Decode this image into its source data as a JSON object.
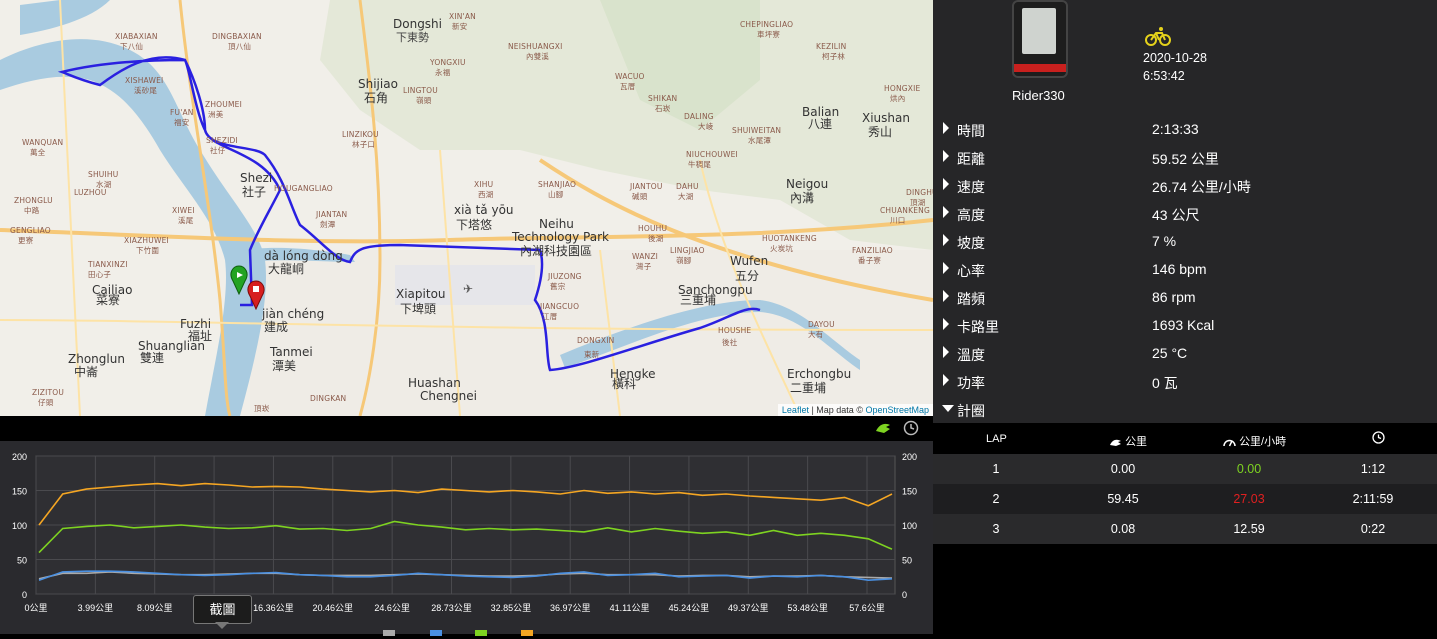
{
  "map": {
    "attribution_leaflet": "Leaflet",
    "attribution_rest": " | Map data © ",
    "attribution_osm": "OpenStreetMap",
    "labels": [
      {
        "t": "Dongshi",
        "c": "big"
      },
      {
        "t": "下東勢",
        "c": ""
      },
      {
        "t": "XIN'AN",
        "c": "small"
      },
      {
        "t": "新安",
        "c": "small"
      },
      {
        "t": "Shijiao",
        "c": "big"
      },
      {
        "t": "石角",
        "c": "big"
      },
      {
        "t": "LINGTOU",
        "c": "small"
      },
      {
        "t": "嶺頭",
        "c": "small"
      },
      {
        "t": "YONGXIU",
        "c": "small"
      },
      {
        "t": "永福",
        "c": "small"
      },
      {
        "t": "NEISHUANGXI",
        "c": "small"
      },
      {
        "t": "內雙溪",
        "c": "small"
      },
      {
        "t": "CHEPINGLIAO",
        "c": "small"
      },
      {
        "t": "車坪寮",
        "c": "small"
      },
      {
        "t": "KEZILIN",
        "c": "small"
      },
      {
        "t": "柯子林",
        "c": "small"
      },
      {
        "t": "WACUO",
        "c": "small"
      },
      {
        "t": "瓦厝",
        "c": "small"
      },
      {
        "t": "SHIKAN",
        "c": "small"
      },
      {
        "t": "石崁",
        "c": "small"
      },
      {
        "t": "DALING",
        "c": "small"
      },
      {
        "t": "大崚",
        "c": "small"
      },
      {
        "t": "Balian",
        "c": "big"
      },
      {
        "t": "八連",
        "c": "big"
      },
      {
        "t": "Xiushan",
        "c": "big"
      },
      {
        "t": "秀山",
        "c": "big"
      },
      {
        "t": "HONGXIE",
        "c": "small"
      },
      {
        "t": "烘內",
        "c": "small"
      },
      {
        "t": "SHUIWEITAN",
        "c": "small"
      },
      {
        "t": "水尾潭",
        "c": "small"
      },
      {
        "t": "NIUCHOUWEI",
        "c": "small"
      },
      {
        "t": "牛稠尾",
        "c": "small"
      },
      {
        "t": "XIABAXIAN",
        "c": "small"
      },
      {
        "t": "下八仙",
        "c": "small"
      },
      {
        "t": "DINGBAXIAN",
        "c": "small"
      },
      {
        "t": "頂八仙",
        "c": "small"
      },
      {
        "t": "XISHAWEI",
        "c": "small"
      },
      {
        "t": "溪砂尾",
        "c": "small"
      },
      {
        "t": "ZHOUMEI",
        "c": "small"
      },
      {
        "t": "洲美",
        "c": "small"
      },
      {
        "t": "FU'AN",
        "c": "small"
      },
      {
        "t": "福安",
        "c": "small"
      },
      {
        "t": "LINZIKOU",
        "c": "small"
      },
      {
        "t": "林子口",
        "c": "small"
      },
      {
        "t": "SHEZIDI",
        "c": "small"
      },
      {
        "t": "社仔",
        "c": "small"
      },
      {
        "t": "Shezi",
        "c": "big"
      },
      {
        "t": "社子",
        "c": "big"
      },
      {
        "t": "HOUGANGLIAO",
        "c": "small"
      },
      {
        "t": "JIANTAN",
        "c": "small"
      },
      {
        "t": "劍潭",
        "c": "small"
      },
      {
        "t": "XIHU",
        "c": "small"
      },
      {
        "t": "西湖",
        "c": "small"
      },
      {
        "t": "xià tǎ yōu",
        "c": "big"
      },
      {
        "t": "下塔悠",
        "c": "big"
      },
      {
        "t": "SHANJIAO",
        "c": "small"
      },
      {
        "t": "山腳",
        "c": "small"
      },
      {
        "t": "JIANTOU",
        "c": "small"
      },
      {
        "t": "碱頭",
        "c": "small"
      },
      {
        "t": "DAHU",
        "c": "small"
      },
      {
        "t": "大湖",
        "c": "small"
      },
      {
        "t": "Neigou",
        "c": "big"
      },
      {
        "t": "內溝",
        "c": "big"
      },
      {
        "t": "Neihu",
        "c": "big"
      },
      {
        "t": "Technology Park",
        "c": "big"
      },
      {
        "t": "內湖科技園區",
        "c": "big"
      },
      {
        "t": "HOUHU",
        "c": "small"
      },
      {
        "t": "後湖",
        "c": "small"
      },
      {
        "t": "LINGJIAO",
        "c": "small"
      },
      {
        "t": "嶺腳",
        "c": "small"
      },
      {
        "t": "WANZI",
        "c": "small"
      },
      {
        "t": "灣子",
        "c": "small"
      },
      {
        "t": "HUOTANKENG",
        "c": "small"
      },
      {
        "t": "火炭坑",
        "c": "small"
      },
      {
        "t": "Wufen",
        "c": "big"
      },
      {
        "t": "五分",
        "c": "big"
      },
      {
        "t": "FANZILIAO",
        "c": "small"
      },
      {
        "t": "番子寮",
        "c": "small"
      },
      {
        "t": "DINGHU",
        "c": "small"
      },
      {
        "t": "頂湖",
        "c": "small"
      },
      {
        "t": "CHUANKENG",
        "c": "small"
      },
      {
        "t": "川口",
        "c": "small"
      },
      {
        "t": "WANQUAN",
        "c": "small"
      },
      {
        "t": "萬全",
        "c": "small"
      },
      {
        "t": "SHUIHU",
        "c": "small"
      },
      {
        "t": "水湖",
        "c": "small"
      },
      {
        "t": "LUZHOU",
        "c": "small"
      },
      {
        "t": "ZHONGLU",
        "c": "small"
      },
      {
        "t": "中路",
        "c": "small"
      },
      {
        "t": "XIWEI",
        "c": "small"
      },
      {
        "t": "溪尾",
        "c": "small"
      },
      {
        "t": "GENGLIAO",
        "c": "small"
      },
      {
        "t": "更寮",
        "c": "small"
      },
      {
        "t": "XIAZHUWEI",
        "c": "small"
      },
      {
        "t": "下竹圍",
        "c": "small"
      },
      {
        "t": "TIANXINZI",
        "c": "small"
      },
      {
        "t": "田心子",
        "c": "small"
      },
      {
        "t": "dà lóng dòng",
        "c": "big"
      },
      {
        "t": "大龍峒",
        "c": "big"
      },
      {
        "t": "Xiapitou",
        "c": "big"
      },
      {
        "t": "下埤頭",
        "c": "big"
      },
      {
        "t": "JIUZONG",
        "c": "small"
      },
      {
        "t": "舊宗",
        "c": "small"
      },
      {
        "t": "JIANGCUO",
        "c": "small"
      },
      {
        "t": "江厝",
        "c": "small"
      },
      {
        "t": "Sanchongpu",
        "c": "big"
      },
      {
        "t": "三重埔",
        "c": "big"
      },
      {
        "t": "HOUSHE",
        "c": "small"
      },
      {
        "t": "後社",
        "c": "small"
      },
      {
        "t": "DAYOU",
        "c": "small"
      },
      {
        "t": "大有",
        "c": "small"
      },
      {
        "t": "Cailiao",
        "c": "big"
      },
      {
        "t": "菜寮",
        "c": "big"
      },
      {
        "t": "Fuzhi",
        "c": "big"
      },
      {
        "t": "福址",
        "c": "big"
      },
      {
        "t": "Shuanglian",
        "c": "big"
      },
      {
        "t": "雙連",
        "c": "big"
      },
      {
        "t": "jiàn chéng",
        "c": "big"
      },
      {
        "t": "建成",
        "c": "big"
      },
      {
        "t": "Tanmei",
        "c": "big"
      },
      {
        "t": "潭美",
        "c": "big"
      },
      {
        "t": "DONGXIN",
        "c": "small"
      },
      {
        "t": "東新",
        "c": "small"
      },
      {
        "t": "Hengke",
        "c": "big"
      },
      {
        "t": "橫科",
        "c": "big"
      },
      {
        "t": "Erchongbu",
        "c": "big"
      },
      {
        "t": "二重埔",
        "c": "big"
      },
      {
        "t": "Zhonglun",
        "c": "big"
      },
      {
        "t": "中崙",
        "c": "big"
      },
      {
        "t": "Huashan",
        "c": "big"
      },
      {
        "t": "Chengnei",
        "c": "big"
      },
      {
        "t": "DINGKAN",
        "c": "small"
      },
      {
        "t": "頂崁",
        "c": "small"
      },
      {
        "t": "ZIZITOU",
        "c": "small"
      },
      {
        "t": "仔頭",
        "c": "small"
      }
    ]
  },
  "chart_toolbar": {
    "bike_icon": "bike-speed-icon",
    "clock_icon": "clock-icon"
  },
  "chart_data": {
    "type": "line",
    "xlabel": "",
    "ylabel": "",
    "x_ticks": [
      "0公里",
      "3.99公里",
      "8.09公里",
      "12.2公里",
      "16.36公里",
      "20.46公里",
      "24.6公里",
      "28.73公里",
      "32.85公里",
      "36.97公里",
      "41.11公里",
      "45.24公里",
      "49.37公里",
      "53.48公里",
      "57.6公里"
    ],
    "y_ticks_left": [
      "200",
      "150",
      "100",
      "50",
      "0"
    ],
    "y_ticks_right": [
      "200",
      "150",
      "100",
      "50",
      "0"
    ],
    "ylim": [
      0,
      200
    ],
    "xlim": [
      0,
      59.52
    ],
    "grid": true,
    "series": [
      {
        "color": "#f5a623",
        "values": [
          100,
          145,
          152,
          155,
          158,
          160,
          157,
          160,
          158,
          155,
          156,
          155,
          152,
          150,
          148,
          150,
          147,
          152,
          150,
          148,
          150,
          148,
          145,
          150,
          146,
          148,
          145,
          147,
          143,
          145,
          142,
          140,
          138,
          136,
          140,
          128,
          145
        ]
      },
      {
        "color": "#7ed321",
        "values": [
          60,
          95,
          98,
          100,
          96,
          98,
          100,
          97,
          95,
          96,
          99,
          94,
          95,
          92,
          95,
          105,
          100,
          97,
          93,
          95,
          93,
          94,
          92,
          90,
          96,
          90,
          95,
          91,
          88,
          90,
          85,
          92,
          85,
          88,
          85,
          80,
          65
        ]
      },
      {
        "color": "#4a90e2",
        "values": [
          20,
          32,
          33,
          33,
          32,
          30,
          28,
          27,
          28,
          30,
          31,
          28,
          27,
          25,
          25,
          27,
          30,
          28,
          26,
          25,
          24,
          26,
          30,
          32,
          27,
          28,
          30,
          25,
          26,
          27,
          23,
          26,
          25,
          27,
          25,
          20,
          22
        ]
      },
      {
        "color": "#aaaaaa",
        "values": [
          22,
          30,
          30,
          32,
          30,
          29,
          28,
          28,
          29,
          30,
          30,
          28,
          27,
          27,
          27,
          28,
          29,
          28,
          27,
          26,
          26,
          27,
          29,
          30,
          28,
          28,
          28,
          26,
          27,
          27,
          25,
          26,
          26,
          27,
          25,
          24,
          23
        ]
      }
    ],
    "tooltip": "截圖"
  },
  "device": {
    "name": "Rider330",
    "date": "2020-10-28",
    "time": "6:53:42"
  },
  "stats": [
    {
      "label": "時間",
      "value": "2:13:33"
    },
    {
      "label": "距離",
      "value": "59.52 公里"
    },
    {
      "label": "速度",
      "value": "26.74 公里/小時"
    },
    {
      "label": "高度",
      "value": "43 公尺"
    },
    {
      "label": "坡度",
      "value": "7 %"
    },
    {
      "label": "心率",
      "value": "146 bpm"
    },
    {
      "label": "踏頻",
      "value": "86 rpm"
    },
    {
      "label": "卡路里",
      "value": "1693 Kcal"
    },
    {
      "label": "溫度",
      "value": "25 °C"
    },
    {
      "label": "功率",
      "value": "0 瓦"
    },
    {
      "label": "計圈",
      "value": ""
    }
  ],
  "laps": {
    "headers": {
      "lap": "LAP",
      "dist": "公里",
      "speed": "公里/小時"
    },
    "rows": [
      {
        "lap": "1",
        "dist": "0.00",
        "speed": "0.00",
        "speed_color": "#7ed321",
        "time": "1:12"
      },
      {
        "lap": "2",
        "dist": "59.45",
        "speed": "27.03",
        "speed_color": "#e02020",
        "time": "2:11:59"
      },
      {
        "lap": "3",
        "dist": "0.08",
        "speed": "12.59",
        "speed_color": "#ffffff",
        "time": "0:22"
      }
    ]
  }
}
